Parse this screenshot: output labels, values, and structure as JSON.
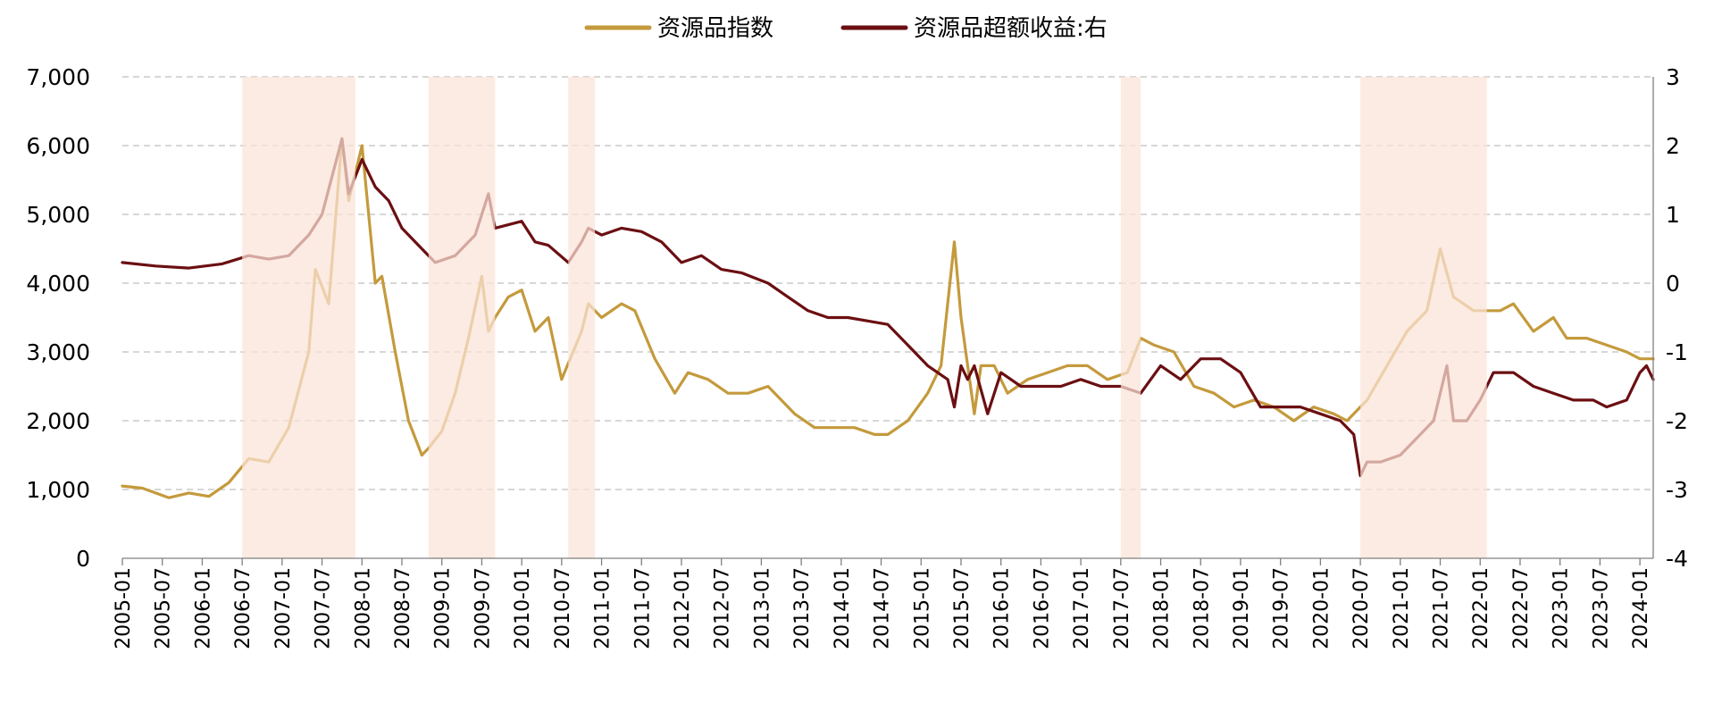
{
  "chart_data": {
    "type": "line",
    "x_axis": {
      "tick_labels": [
        "2005-01",
        "2005-07",
        "2006-01",
        "2006-07",
        "2007-01",
        "2007-07",
        "2008-01",
        "2008-07",
        "2009-01",
        "2009-07",
        "2010-01",
        "2010-07",
        "2011-01",
        "2011-07",
        "2012-01",
        "2012-07",
        "2013-01",
        "2013-07",
        "2014-01",
        "2014-07",
        "2015-01",
        "2015-07",
        "2016-01",
        "2016-07",
        "2017-01",
        "2017-07",
        "2018-01",
        "2018-07",
        "2019-01",
        "2019-07",
        "2020-01",
        "2020-07",
        "2021-01",
        "2021-07",
        "2022-01",
        "2022-07",
        "2023-01",
        "2023-07",
        "2024-01"
      ],
      "range": [
        "2005-01",
        "2024-03"
      ]
    },
    "y_left": {
      "range": [
        0,
        7000
      ],
      "ticks": [
        0,
        1000,
        2000,
        3000,
        4000,
        5000,
        6000,
        7000
      ],
      "tick_labels": [
        "0",
        "1,000",
        "2,000",
        "3,000",
        "4,000",
        "5,000",
        "6,000",
        "7,000"
      ]
    },
    "y_right": {
      "range": [
        -4,
        3
      ],
      "ticks": [
        -4,
        -3,
        -2,
        -1,
        0,
        1,
        2,
        3
      ],
      "tick_labels": [
        "-4",
        "-3",
        "-2",
        "-1",
        "0",
        "1",
        "2",
        "3"
      ]
    },
    "grid": "horizontal-dashed",
    "legend_position": "top-center",
    "series": [
      {
        "name": "资源品指数",
        "axis": "left",
        "color": "#C49A3C",
        "x": [
          "2005-01",
          "2005-04",
          "2005-08",
          "2005-11",
          "2006-02",
          "2006-05",
          "2006-08",
          "2006-11",
          "2007-02",
          "2007-05",
          "2007-06",
          "2007-08",
          "2007-10",
          "2007-11",
          "2008-01",
          "2008-03",
          "2008-04",
          "2008-06",
          "2008-08",
          "2008-10",
          "2008-11",
          "2009-01",
          "2009-03",
          "2009-05",
          "2009-07",
          "2009-08",
          "2009-09",
          "2009-11",
          "2010-01",
          "2010-03",
          "2010-05",
          "2010-07",
          "2010-10",
          "2010-11",
          "2011-01",
          "2011-04",
          "2011-06",
          "2011-09",
          "2011-12",
          "2012-02",
          "2012-05",
          "2012-08",
          "2012-11",
          "2013-02",
          "2013-06",
          "2013-09",
          "2013-12",
          "2014-03",
          "2014-06",
          "2014-08",
          "2014-11",
          "2015-02",
          "2015-04",
          "2015-06",
          "2015-07",
          "2015-09",
          "2015-10",
          "2015-12",
          "2016-02",
          "2016-05",
          "2016-08",
          "2016-11",
          "2017-02",
          "2017-05",
          "2017-08",
          "2017-10",
          "2017-12",
          "2018-03",
          "2018-06",
          "2018-09",
          "2018-12",
          "2019-03",
          "2019-06",
          "2019-09",
          "2019-12",
          "2020-03",
          "2020-05",
          "2020-08",
          "2020-11",
          "2021-02",
          "2021-05",
          "2021-07",
          "2021-09",
          "2021-12",
          "2022-02",
          "2022-04",
          "2022-06",
          "2022-09",
          "2022-12",
          "2023-02",
          "2023-05",
          "2023-08",
          "2023-11",
          "2024-01",
          "2024-03"
        ],
        "values": [
          1050,
          1020,
          880,
          950,
          900,
          1100,
          1450,
          1400,
          1900,
          3000,
          4200,
          3700,
          6100,
          5200,
          6000,
          4000,
          4100,
          3000,
          2000,
          1500,
          1600,
          1850,
          2400,
          3200,
          4100,
          3300,
          3500,
          3800,
          3900,
          3300,
          3500,
          2600,
          3300,
          3700,
          3500,
          3700,
          3600,
          2900,
          2400,
          2700,
          2600,
          2400,
          2400,
          2500,
          2100,
          1900,
          1900,
          1900,
          1800,
          1800,
          2000,
          2400,
          2800,
          4600,
          3500,
          2100,
          2800,
          2800,
          2400,
          2600,
          2700,
          2800,
          2800,
          2600,
          2700,
          3200,
          3100,
          3000,
          2500,
          2400,
          2200,
          2300,
          2200,
          2000,
          2200,
          2100,
          2000,
          2300,
          2800,
          3300,
          3600,
          4500,
          3800,
          3600,
          3600,
          3600,
          3700,
          3300,
          3500,
          3200,
          3200,
          3100,
          3000,
          2900,
          2900
        ]
      },
      {
        "name": "资源品超额收益:右",
        "axis": "right",
        "color": "#6B0F12",
        "x": [
          "2005-01",
          "2005-06",
          "2005-11",
          "2006-04",
          "2006-08",
          "2006-11",
          "2007-02",
          "2007-05",
          "2007-07",
          "2007-10",
          "2007-11",
          "2008-01",
          "2008-03",
          "2008-05",
          "2008-07",
          "2008-10",
          "2008-12",
          "2009-03",
          "2009-06",
          "2009-08",
          "2009-09",
          "2009-11",
          "2010-01",
          "2010-03",
          "2010-05",
          "2010-08",
          "2010-10",
          "2010-11",
          "2011-01",
          "2011-04",
          "2011-07",
          "2011-10",
          "2012-01",
          "2012-04",
          "2012-07",
          "2012-10",
          "2013-02",
          "2013-05",
          "2013-08",
          "2013-11",
          "2014-02",
          "2014-05",
          "2014-08",
          "2014-11",
          "2015-02",
          "2015-05",
          "2015-06",
          "2015-07",
          "2015-08",
          "2015-09",
          "2015-11",
          "2016-01",
          "2016-04",
          "2016-07",
          "2016-10",
          "2017-01",
          "2017-04",
          "2017-07",
          "2017-10",
          "2018-01",
          "2018-04",
          "2018-07",
          "2018-10",
          "2019-01",
          "2019-04",
          "2019-07",
          "2019-10",
          "2020-01",
          "2020-04",
          "2020-06",
          "2020-07",
          "2020-08",
          "2020-10",
          "2021-01",
          "2021-04",
          "2021-06",
          "2021-08",
          "2021-09",
          "2021-11",
          "2022-01",
          "2022-03",
          "2022-06",
          "2022-09",
          "2022-12",
          "2023-03",
          "2023-06",
          "2023-08",
          "2023-11",
          "2024-01",
          "2024-02",
          "2024-03"
        ],
        "values": [
          0.3,
          0.25,
          0.22,
          0.28,
          0.4,
          0.35,
          0.4,
          0.7,
          1.0,
          2.1,
          1.3,
          1.8,
          1.4,
          1.2,
          0.8,
          0.5,
          0.3,
          0.4,
          0.7,
          1.3,
          0.8,
          0.85,
          0.9,
          0.6,
          0.55,
          0.3,
          0.6,
          0.8,
          0.7,
          0.8,
          0.75,
          0.6,
          0.3,
          0.4,
          0.2,
          0.15,
          0.0,
          -0.2,
          -0.4,
          -0.5,
          -0.5,
          -0.55,
          -0.6,
          -0.9,
          -1.2,
          -1.4,
          -1.8,
          -1.2,
          -1.4,
          -1.2,
          -1.9,
          -1.3,
          -1.5,
          -1.5,
          -1.5,
          -1.4,
          -1.5,
          -1.5,
          -1.6,
          -1.2,
          -1.4,
          -1.1,
          -1.1,
          -1.3,
          -1.8,
          -1.8,
          -1.8,
          -1.9,
          -2.0,
          -2.2,
          -2.8,
          -2.6,
          -2.6,
          -2.5,
          -2.2,
          -2.0,
          -1.2,
          -2.0,
          -2.0,
          -1.7,
          -1.3,
          -1.3,
          -1.5,
          -1.6,
          -1.7,
          -1.7,
          -1.8,
          -1.7,
          -1.3,
          -1.2,
          -1.4
        ]
      }
    ],
    "shaded_periods": [
      {
        "start": "2006-07",
        "end": "2007-12",
        "color": "#FBE3D7"
      },
      {
        "start": "2008-11",
        "end": "2009-09",
        "color": "#FBE3D7"
      },
      {
        "start": "2010-08",
        "end": "2010-12",
        "color": "#FBE3D7"
      },
      {
        "start": "2017-07",
        "end": "2017-10",
        "color": "#FBE3D7"
      },
      {
        "start": "2020-07",
        "end": "2022-02",
        "color": "#FBE3D7"
      }
    ]
  }
}
